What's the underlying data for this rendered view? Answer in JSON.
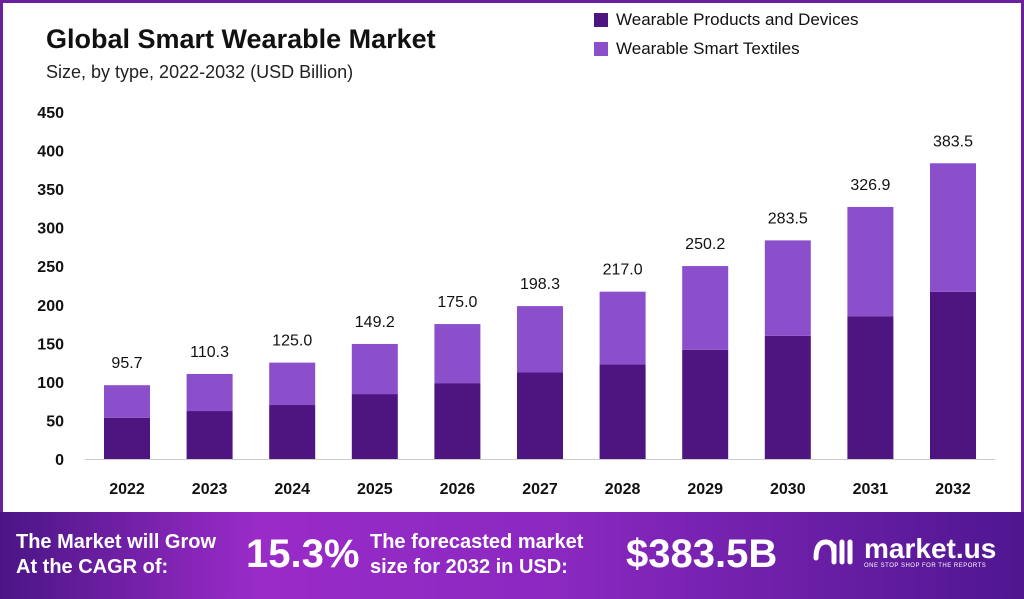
{
  "chart_data": {
    "type": "bar",
    "stacked": true,
    "title": "Global Smart Wearable Market",
    "subtitle": "Size, by type, 2022-2032 (USD Billion)",
    "categories": [
      "2022",
      "2023",
      "2024",
      "2025",
      "2026",
      "2027",
      "2028",
      "2029",
      "2030",
      "2031",
      "2032"
    ],
    "series": [
      {
        "name": "Wearable Products and Devices",
        "color": "#4e1581",
        "values": [
          53.5,
          62.2,
          70.0,
          84.2,
          98.4,
          112.2,
          122.5,
          141.6,
          159.7,
          185.2,
          216.7
        ]
      },
      {
        "name": "Wearable Smart Textiles",
        "color": "#8b4fcc",
        "values": [
          42.2,
          48.1,
          55.0,
          65.0,
          76.6,
          86.1,
          94.5,
          108.6,
          123.8,
          141.7,
          166.8
        ]
      }
    ],
    "totals": [
      "95.7",
      "110.3",
      "125.0",
      "149.2",
      "175.0",
      "198.3",
      "217.0",
      "250.2",
      "283.5",
      "326.9",
      "383.5"
    ],
    "yticks": [
      0,
      50,
      100,
      150,
      200,
      250,
      300,
      350,
      400,
      450
    ],
    "ylim": [
      0,
      450
    ],
    "grid": false,
    "legend": "top-right"
  },
  "footer": {
    "cagr_label_1": "The Market will Grow",
    "cagr_label_2": "At the CAGR of:",
    "cagr_value": "15.3%",
    "forecast_label_1": "The forecasted market",
    "forecast_label_2": "size for 2032 in USD:",
    "forecast_value": "$383.5B",
    "brand": "market.us",
    "brand_tagline": "ONE STOP SHOP FOR THE REPORTS"
  }
}
